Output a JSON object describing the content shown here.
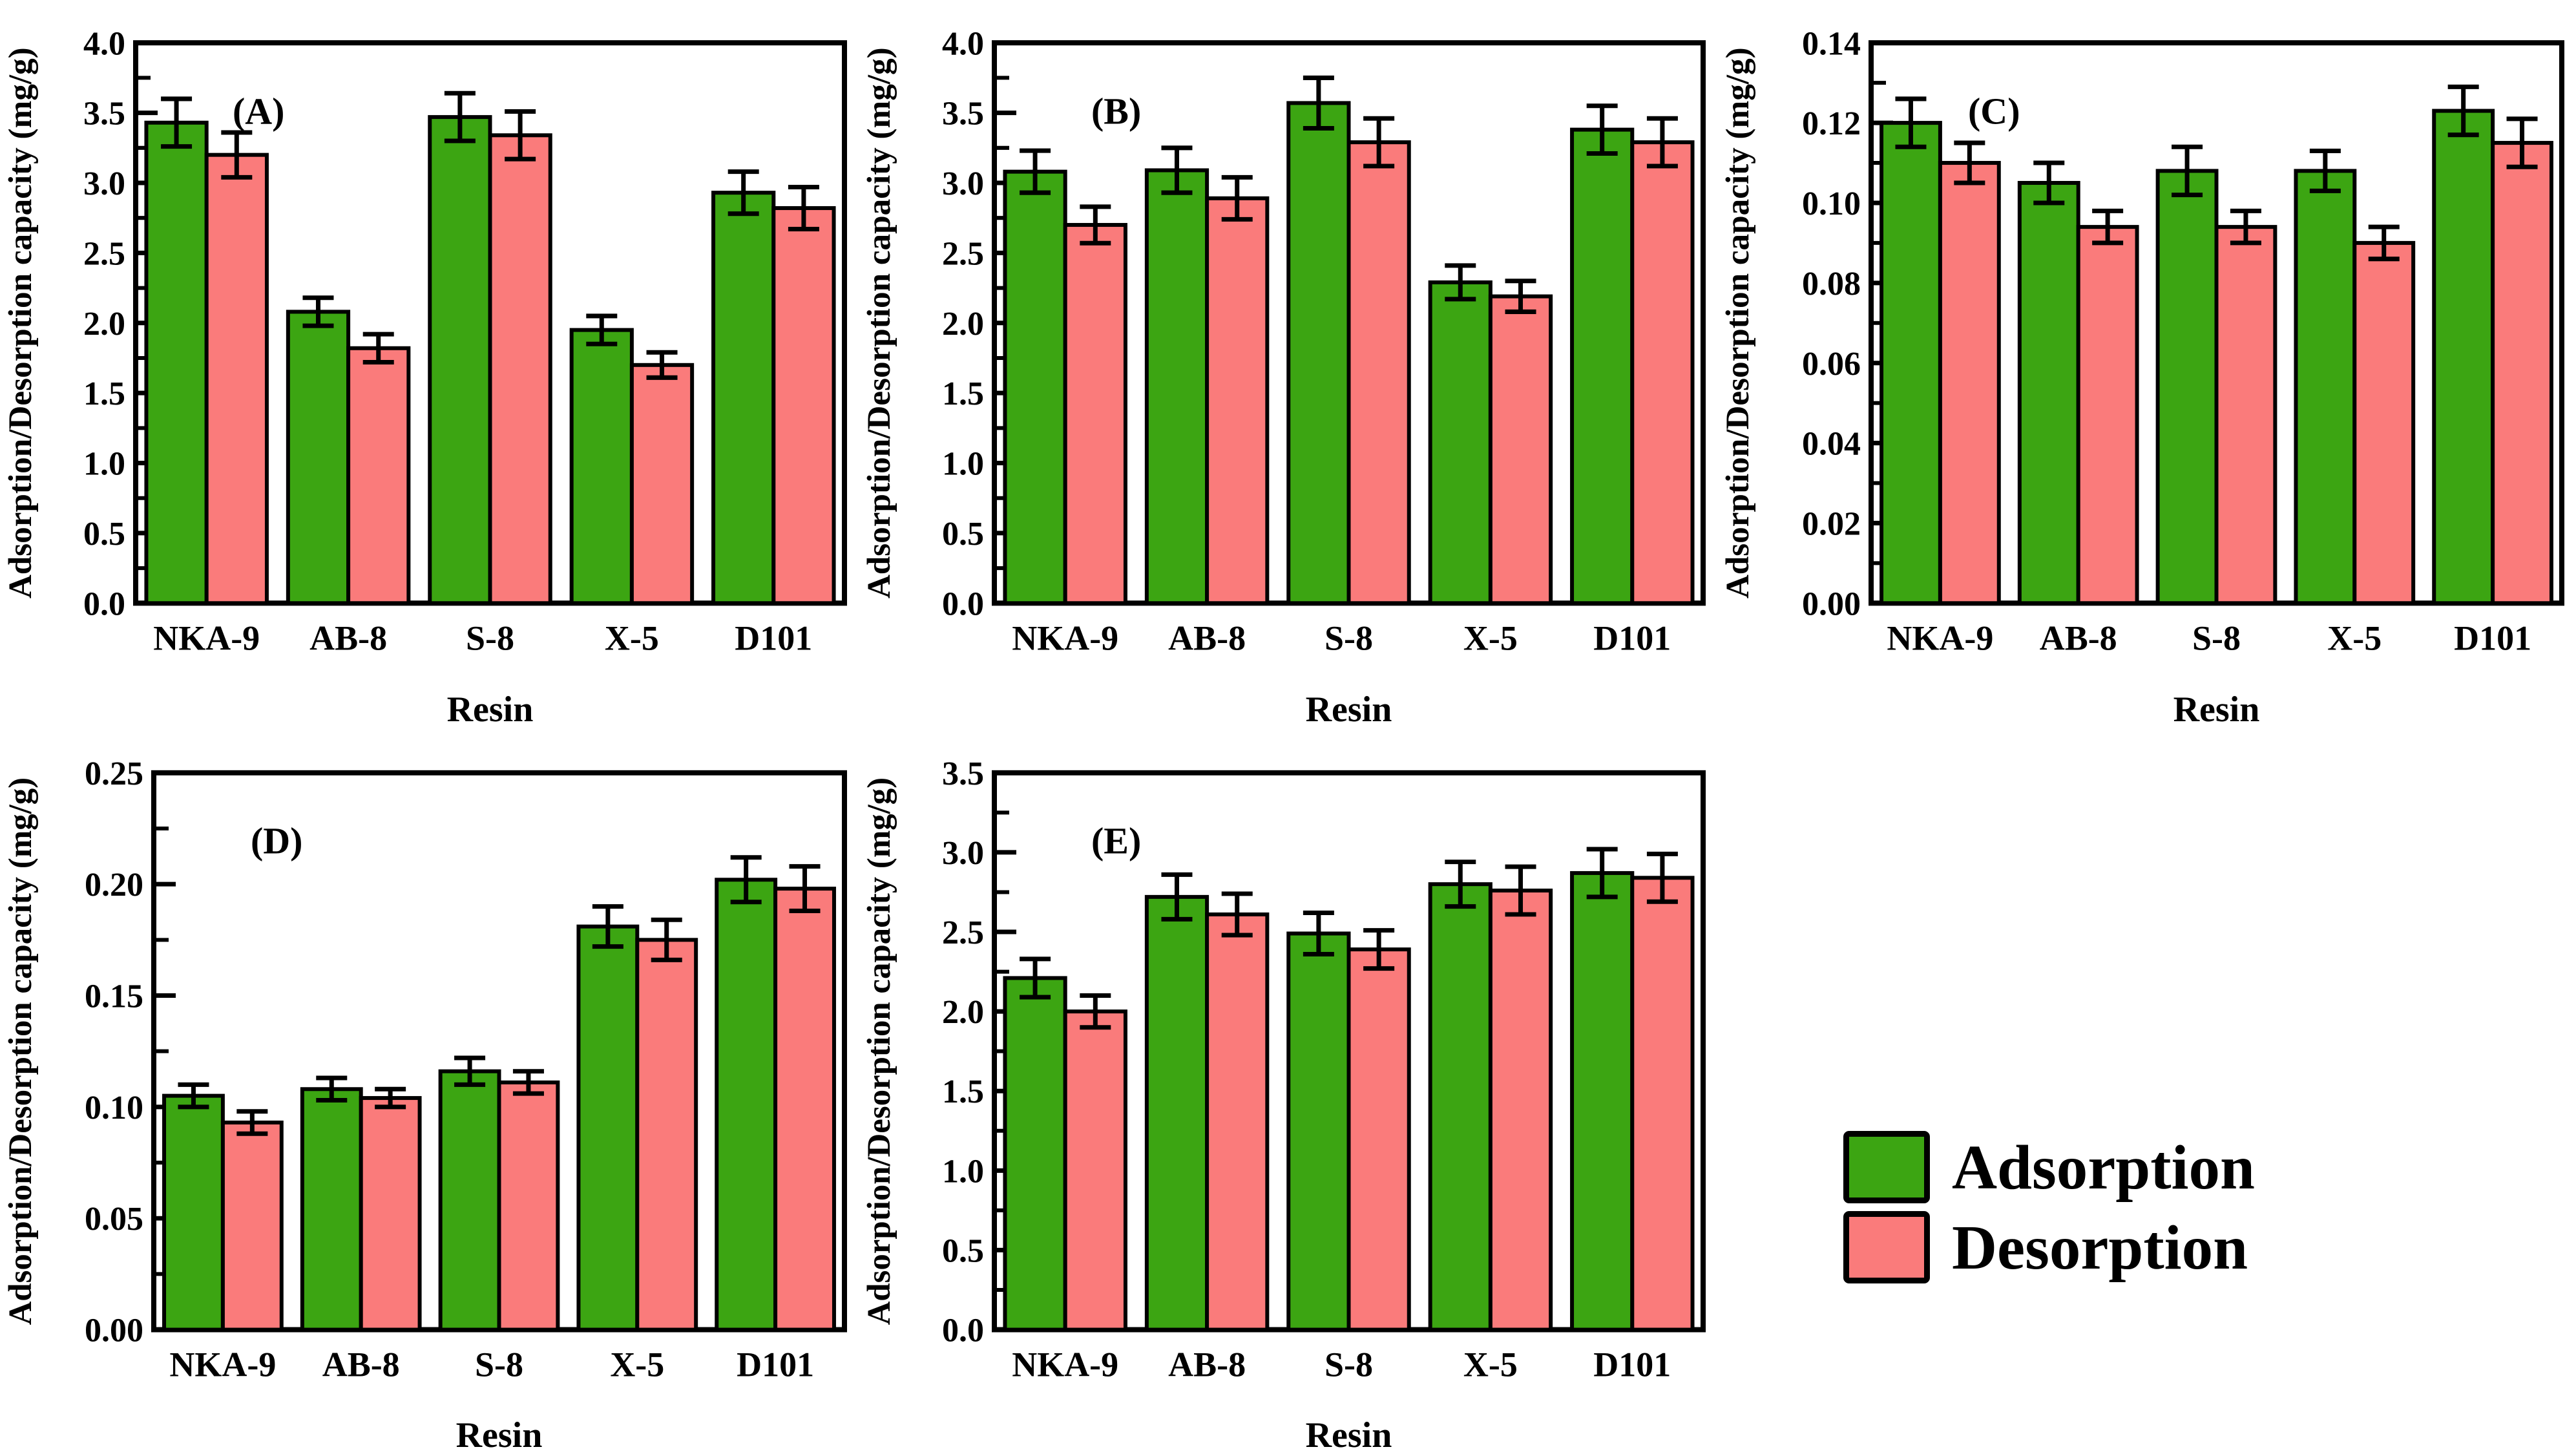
{
  "figure": {
    "background": "#ffffff",
    "colors": {
      "adsorption": "#3CA512",
      "desorption": "#FA7B7B",
      "axis": "#000000"
    },
    "legend": {
      "items": [
        {
          "label": "Adsorption",
          "color_key": "adsorption"
        },
        {
          "label": "Desorption",
          "color_key": "desorption"
        }
      ]
    }
  },
  "chart_data": [
    {
      "panel": "(A)",
      "type": "bar",
      "xlabel": "Resin",
      "ylabel": "Adsorption/Desorption capacity (mg/g)",
      "categories": [
        "NKA-9",
        "AB-8",
        "S-8",
        "X-5",
        "D101"
      ],
      "ylim": [
        0,
        4.0
      ],
      "ytick_step": 0.5,
      "ytick_decimals": 1,
      "grid": false,
      "legend_position": "none",
      "series": [
        {
          "name": "Adsorption",
          "values": [
            3.43,
            2.08,
            3.47,
            1.95,
            2.93
          ],
          "errors": [
            0.17,
            0.1,
            0.17,
            0.1,
            0.15
          ]
        },
        {
          "name": "Desorption",
          "values": [
            3.2,
            1.82,
            3.34,
            1.7,
            2.82
          ],
          "errors": [
            0.16,
            0.1,
            0.17,
            0.09,
            0.15
          ]
        }
      ]
    },
    {
      "panel": "(B)",
      "type": "bar",
      "xlabel": "Resin",
      "ylabel": "Adsorption/Desorption capacity (mg/g)",
      "categories": [
        "NKA-9",
        "AB-8",
        "S-8",
        "X-5",
        "D101"
      ],
      "ylim": [
        0,
        4.0
      ],
      "ytick_step": 0.5,
      "ytick_decimals": 1,
      "grid": false,
      "legend_position": "none",
      "series": [
        {
          "name": "Adsorption",
          "values": [
            3.08,
            3.09,
            3.57,
            2.29,
            3.38
          ],
          "errors": [
            0.15,
            0.16,
            0.18,
            0.12,
            0.17
          ]
        },
        {
          "name": "Desorption",
          "values": [
            2.7,
            2.89,
            3.29,
            2.19,
            3.29
          ],
          "errors": [
            0.13,
            0.15,
            0.17,
            0.11,
            0.17
          ]
        }
      ]
    },
    {
      "panel": "(C)",
      "type": "bar",
      "xlabel": "Resin",
      "ylabel": "Adsorption/Desorption capacity (mg/g)",
      "categories": [
        "NKA-9",
        "AB-8",
        "S-8",
        "X-5",
        "D101"
      ],
      "ylim": [
        0,
        0.14
      ],
      "ytick_step": 0.02,
      "ytick_decimals": 2,
      "grid": false,
      "legend_position": "none",
      "series": [
        {
          "name": "Adsorption",
          "values": [
            0.12,
            0.105,
            0.108,
            0.108,
            0.123
          ],
          "errors": [
            0.006,
            0.005,
            0.006,
            0.005,
            0.006
          ]
        },
        {
          "name": "Desorption",
          "values": [
            0.11,
            0.094,
            0.094,
            0.09,
            0.115
          ],
          "errors": [
            0.005,
            0.004,
            0.004,
            0.004,
            0.006
          ]
        }
      ]
    },
    {
      "panel": "(D)",
      "type": "bar",
      "xlabel": "Resin",
      "ylabel": "Adsorption/Desorption capacity (mg/g)",
      "categories": [
        "NKA-9",
        "AB-8",
        "S-8",
        "X-5",
        "D101"
      ],
      "ylim": [
        0,
        0.25
      ],
      "ytick_step": 0.05,
      "ytick_decimals": 2,
      "grid": false,
      "legend_position": "none",
      "series": [
        {
          "name": "Adsorption",
          "values": [
            0.105,
            0.108,
            0.116,
            0.181,
            0.202
          ],
          "errors": [
            0.005,
            0.005,
            0.006,
            0.009,
            0.01
          ]
        },
        {
          "name": "Desorption",
          "values": [
            0.093,
            0.104,
            0.111,
            0.175,
            0.198
          ],
          "errors": [
            0.005,
            0.004,
            0.005,
            0.009,
            0.01
          ]
        }
      ]
    },
    {
      "panel": "(E)",
      "type": "bar",
      "xlabel": "Resin",
      "ylabel": "Adsorption/Desorption capacity (mg/g)",
      "categories": [
        "NKA-9",
        "AB-8",
        "S-8",
        "X-5",
        "D101"
      ],
      "ylim": [
        0,
        3.5
      ],
      "ytick_step": 0.5,
      "ytick_decimals": 1,
      "grid": false,
      "legend_position": "none",
      "series": [
        {
          "name": "Adsorption",
          "values": [
            2.21,
            2.72,
            2.49,
            2.8,
            2.87
          ],
          "errors": [
            0.12,
            0.14,
            0.13,
            0.14,
            0.15
          ]
        },
        {
          "name": "Desorption",
          "values": [
            2.0,
            2.61,
            2.39,
            2.76,
            2.84
          ],
          "errors": [
            0.1,
            0.13,
            0.12,
            0.15,
            0.15
          ]
        }
      ]
    }
  ]
}
